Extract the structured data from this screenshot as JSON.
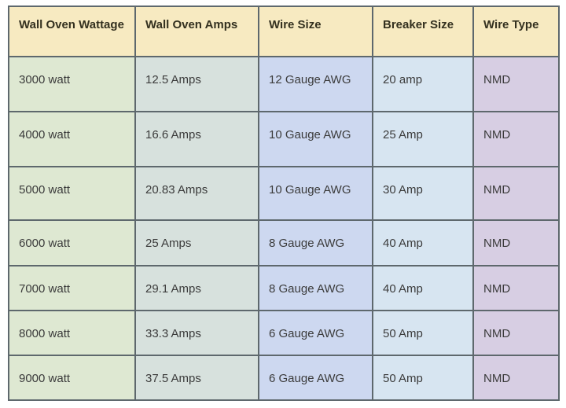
{
  "chart_data": {
    "type": "table",
    "columns": [
      "Wall Oven Wattage",
      "Wall Oven Amps",
      "Wire Size",
      "Breaker Size",
      "Wire Type"
    ],
    "rows": [
      [
        "3000 watt",
        "12.5 Amps",
        "12 Gauge AWG",
        "20 amp",
        "NMD"
      ],
      [
        "4000 watt",
        "16.6 Amps",
        "10 Gauge AWG",
        "25 Amp",
        "NMD"
      ],
      [
        "5000 watt",
        "20.83 Amps",
        "10 Gauge AWG",
        "30 Amp",
        "NMD"
      ],
      [
        "6000 watt",
        "25 Amps",
        "8 Gauge AWG",
        "40 Amp",
        "NMD"
      ],
      [
        "7000 watt",
        "29.1 Amps",
        "8 Gauge AWG",
        "40 Amp",
        "NMD"
      ],
      [
        "8000 watt",
        "33.3 Amps",
        "6 Gauge AWG",
        "50 Amp",
        "NMD"
      ],
      [
        "9000 watt",
        "37.5 Amps",
        "6 Gauge AWG",
        "50 Amp",
        "NMD"
      ]
    ]
  },
  "colors": {
    "header_bg": "#F7EAC1",
    "column_bg": [
      "#DEE8D2",
      "#D7E1DD",
      "#CDD8F0",
      "#D7E5F1",
      "#D7CEE3"
    ],
    "border": "#5E686D",
    "header_text": "#33301F",
    "body_text": "#3B3B3B"
  }
}
